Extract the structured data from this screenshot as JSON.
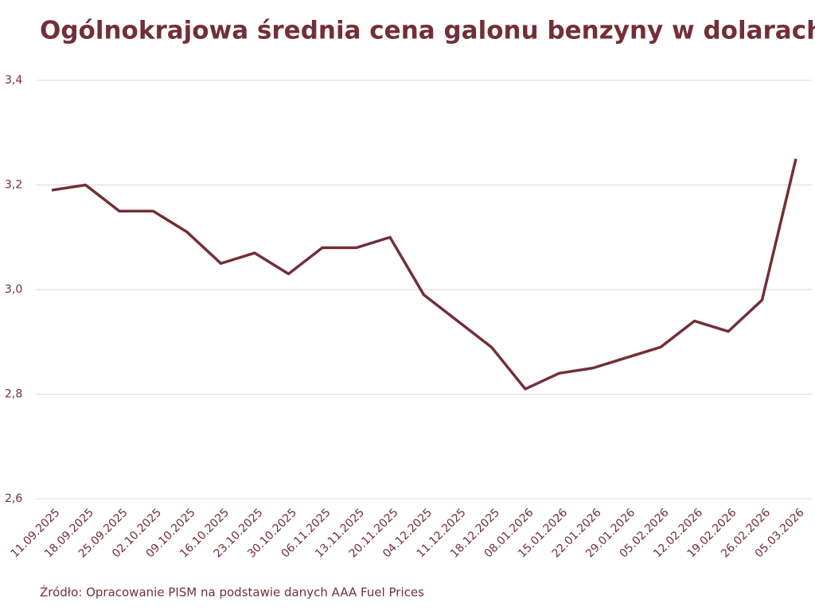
{
  "chart_data": {
    "type": "line",
    "title": "Ogólnokrajowa średnia cena galonu benzyny w dolarach",
    "source": "Źródło: Opracowanie PISM na podstawie danych AAA Fuel Prices",
    "categories": [
      "11.09.2025",
      "18.09.2025",
      "25.09.2025",
      "02.10.2025",
      "09.10.2025",
      "16.10.2025",
      "23.10.2025",
      "30.10.2025",
      "06.11.2025",
      "13.11.2025",
      "20.11.2025",
      "04.12.2025",
      "11.12.2025",
      "18.12.2025",
      "08.01.2026",
      "15.01.2026",
      "22.01.2026",
      "29.01.2026",
      "05.02.2026",
      "12.02.2026",
      "19.02.2026",
      "26.02.2026",
      "05.03.2026"
    ],
    "values": [
      3.19,
      3.2,
      3.15,
      3.15,
      3.11,
      3.05,
      3.07,
      3.03,
      3.08,
      3.08,
      3.1,
      2.99,
      2.94,
      2.89,
      2.81,
      2.84,
      2.85,
      2.87,
      2.89,
      2.94,
      2.92,
      2.98,
      3.25
    ],
    "color": "#722f37",
    "ylim": [
      2.6,
      3.4
    ],
    "yticks": [
      {
        "value": 2.6,
        "label": "2,6"
      },
      {
        "value": 2.8,
        "label": "2,8"
      },
      {
        "value": 3.0,
        "label": "3,0"
      },
      {
        "value": 3.2,
        "label": "3,2"
      },
      {
        "value": 3.4,
        "label": "3,4"
      }
    ],
    "grid": true
  }
}
